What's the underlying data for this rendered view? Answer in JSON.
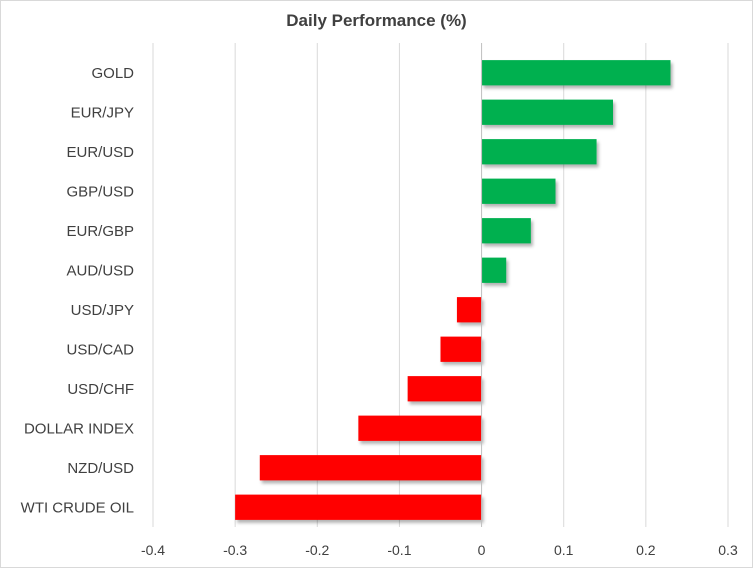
{
  "chart_data": {
    "type": "bar",
    "orientation": "horizontal",
    "title": "Daily Performance (%)",
    "categories": [
      "GOLD",
      "EUR/JPY",
      "EUR/USD",
      "GBP/USD",
      "EUR/GBP",
      "AUD/USD",
      "USD/JPY",
      "USD/CAD",
      "USD/CHF",
      "DOLLAR INDEX",
      "NZD/USD",
      "WTI CRUDE OIL"
    ],
    "values": [
      0.23,
      0.16,
      0.14,
      0.09,
      0.06,
      0.03,
      -0.03,
      -0.05,
      -0.09,
      -0.15,
      -0.27,
      -0.3
    ],
    "xlim": [
      -0.4,
      0.3
    ],
    "xticks": [
      "-0.4",
      "-0.3",
      "-0.2",
      "-0.1",
      "0",
      "0.1",
      "0.2",
      "0.3"
    ],
    "xtick_values": [
      -0.4,
      -0.3,
      -0.2,
      -0.1,
      0,
      0.1,
      0.2,
      0.3
    ],
    "grid": true,
    "legend": "none",
    "colors": {
      "positive": "#00b050",
      "negative": "#ff0000",
      "grid": "#d9d9d9",
      "text": "#404040"
    }
  }
}
